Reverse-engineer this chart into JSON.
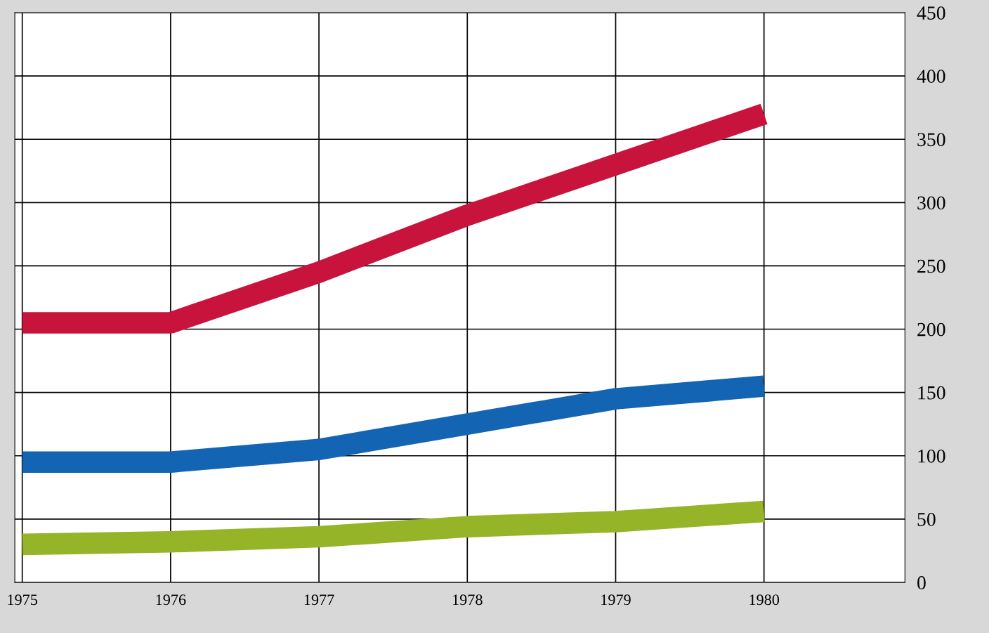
{
  "chart_data": {
    "type": "line",
    "categories": [
      "1975",
      "1976",
      "1977",
      "1978",
      "1979",
      "1980"
    ],
    "series": [
      {
        "color": "#c8143c",
        "values": [
          205,
          205,
          245,
          290,
          330,
          370
        ]
      },
      {
        "color": "#1464b4",
        "values": [
          95,
          95,
          105,
          125,
          145,
          155
        ]
      },
      {
        "color": "#96b428",
        "values": [
          30,
          32,
          36,
          44,
          48,
          56
        ]
      }
    ],
    "ylim": [
      0,
      450
    ],
    "yticks": [
      0,
      50,
      100,
      150,
      200,
      250,
      300,
      350,
      400,
      450
    ],
    "grid": true,
    "marker": "none",
    "line_style": "solid"
  }
}
